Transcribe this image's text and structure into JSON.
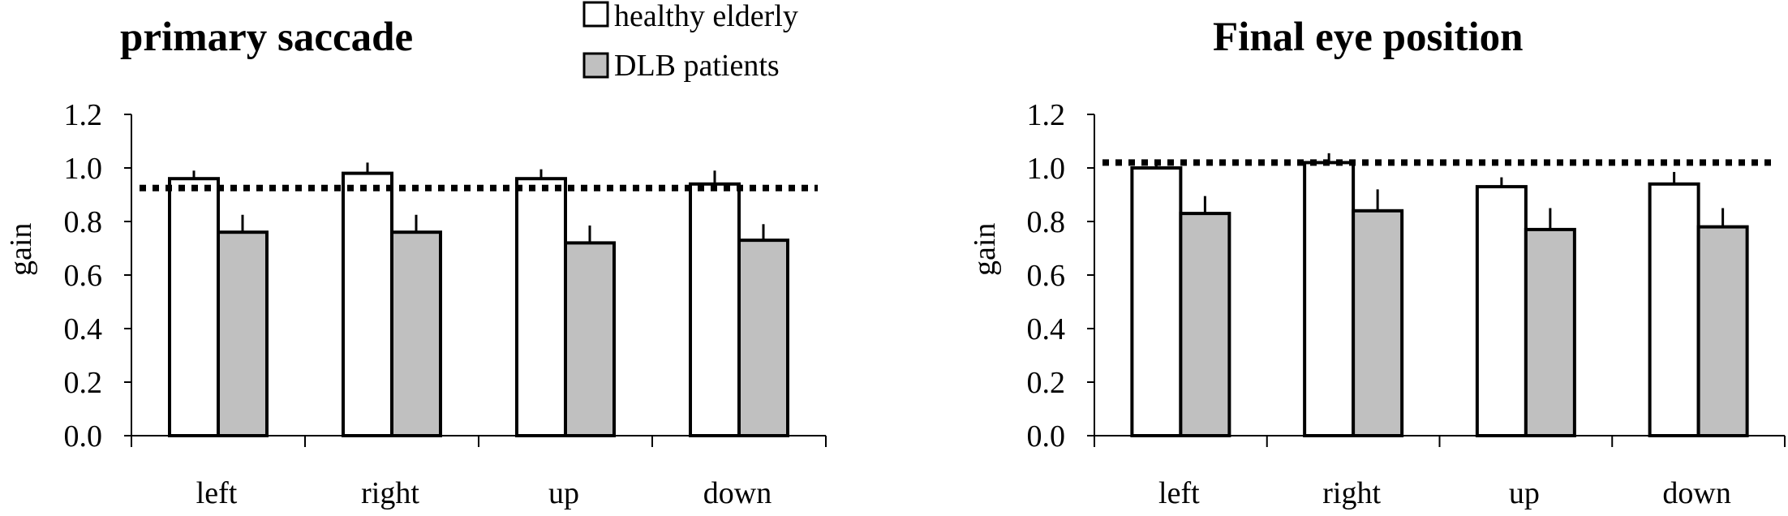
{
  "colors": {
    "healthy": "#ffffff",
    "dlb": "#c0c0c0",
    "stroke": "#000000"
  },
  "legend": {
    "healthy_label": "healthy elderly",
    "dlb_label": "DLB patients"
  },
  "chart_data": [
    {
      "type": "bar",
      "title": "primary saccade",
      "xlabel": "",
      "ylabel": "gain",
      "ylim": [
        0,
        1.2
      ],
      "yticks": [
        "0.0",
        "0.2",
        "0.4",
        "0.6",
        "0.8",
        "1.0",
        "1.2"
      ],
      "categories": [
        "left",
        "right",
        "up",
        "down"
      ],
      "series": [
        {
          "name": "healthy elderly",
          "values": [
            0.96,
            0.98,
            0.96,
            0.94
          ],
          "errors": [
            0.03,
            0.04,
            0.035,
            0.05
          ]
        },
        {
          "name": "DLB patients",
          "values": [
            0.76,
            0.76,
            0.72,
            0.73
          ],
          "errors": [
            0.065,
            0.065,
            0.065,
            0.06
          ]
        }
      ],
      "reference_line": 0.925
    },
    {
      "type": "bar",
      "title": "Final eye position",
      "xlabel": "",
      "ylabel": "gain",
      "ylim": [
        0,
        1.2
      ],
      "yticks": [
        "0.0",
        "0.2",
        "0.4",
        "0.6",
        "0.8",
        "1.0",
        "1.2"
      ],
      "categories": [
        "left",
        "right",
        "up",
        "down"
      ],
      "series": [
        {
          "name": "healthy elderly",
          "values": [
            1.0,
            1.02,
            0.93,
            0.94
          ],
          "errors": [
            0.03,
            0.035,
            0.035,
            0.045
          ]
        },
        {
          "name": "DLB patients",
          "values": [
            0.83,
            0.84,
            0.77,
            0.78
          ],
          "errors": [
            0.065,
            0.08,
            0.08,
            0.07
          ]
        }
      ],
      "reference_line": 1.02
    }
  ]
}
